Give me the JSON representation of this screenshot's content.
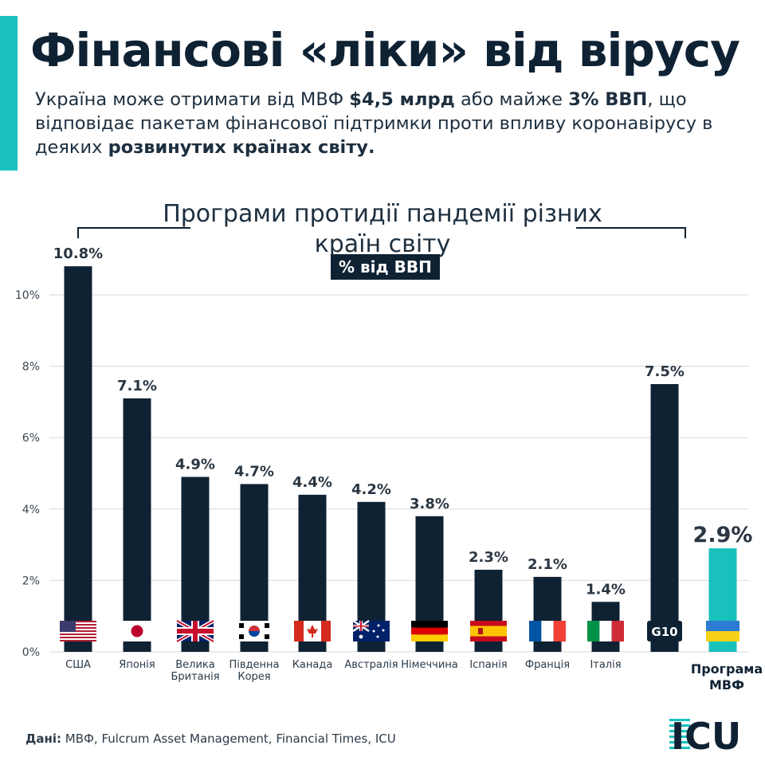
{
  "header": {
    "title": "Фінансові «ліки» від вірусу",
    "subtitle_parts": [
      {
        "text": "Україна може отримати від МВФ ",
        "bold": false
      },
      {
        "text": "$4,5 млрд",
        "bold": true
      },
      {
        "text": " або майже ",
        "bold": false
      },
      {
        "text": "3% ВВП",
        "bold": true
      },
      {
        "text": ", що відповідає пакетам фінансової підтримки проти впливу коронавірусу в деяких ",
        "bold": false
      },
      {
        "text": "розвинутих країнах світу.",
        "bold": true
      }
    ]
  },
  "footer": {
    "source_label": "Дані:",
    "source_text": " МВФ, Fulcrum Asset Management, Financial Times, ICU",
    "logo_text": "ICU"
  },
  "colors": {
    "bar": "#0f2233",
    "highlight": "#19c1bd",
    "grid": "#d9d9d9",
    "text": "#0f2233"
  },
  "chart_data": {
    "type": "bar",
    "title": "Програми протидії пандемії різних країн світу",
    "unit_label": "% від ВВП",
    "ylim": [
      0,
      12
    ],
    "yticks": [
      0,
      2,
      4,
      6,
      8,
      10
    ],
    "ytick_labels": [
      "0%",
      "2%",
      "4%",
      "6%",
      "8%",
      "10%"
    ],
    "grid": true,
    "categories": [
      "США",
      "Японія",
      "Велика Британія",
      "Південна Корея",
      "Канада",
      "Австралія",
      "Німеччина",
      "Іспанія",
      "Франція",
      "Італія",
      "G10",
      "Програма МВФ"
    ],
    "category_labels": [
      [
        "США"
      ],
      [
        "Японія"
      ],
      [
        "Велика",
        "Британія"
      ],
      [
        "Південна",
        "Корея"
      ],
      [
        "Канада"
      ],
      [
        "Австралія"
      ],
      [
        "Німеччина"
      ],
      [
        "Іспанія"
      ],
      [
        "Франція"
      ],
      [
        "Італія"
      ],
      [],
      [
        "Програма",
        "МВФ"
      ]
    ],
    "values": [
      10.8,
      7.1,
      4.9,
      4.7,
      4.4,
      4.2,
      3.8,
      2.3,
      2.1,
      1.4,
      7.5,
      2.9
    ],
    "value_labels": [
      "10.8%",
      "7.1%",
      "4.9%",
      "4.7%",
      "4.4%",
      "4.2%",
      "3.8%",
      "2.3%",
      "2.1%",
      "1.4%",
      "7.5%",
      "2.9%"
    ],
    "badges": [
      "flag-us",
      "flag-jp",
      "flag-gb",
      "flag-kr",
      "flag-ca",
      "flag-au",
      "flag-de",
      "flag-es",
      "flag-fr",
      "flag-it",
      "G10",
      "flag-ua"
    ],
    "highlight_index": 11
  }
}
